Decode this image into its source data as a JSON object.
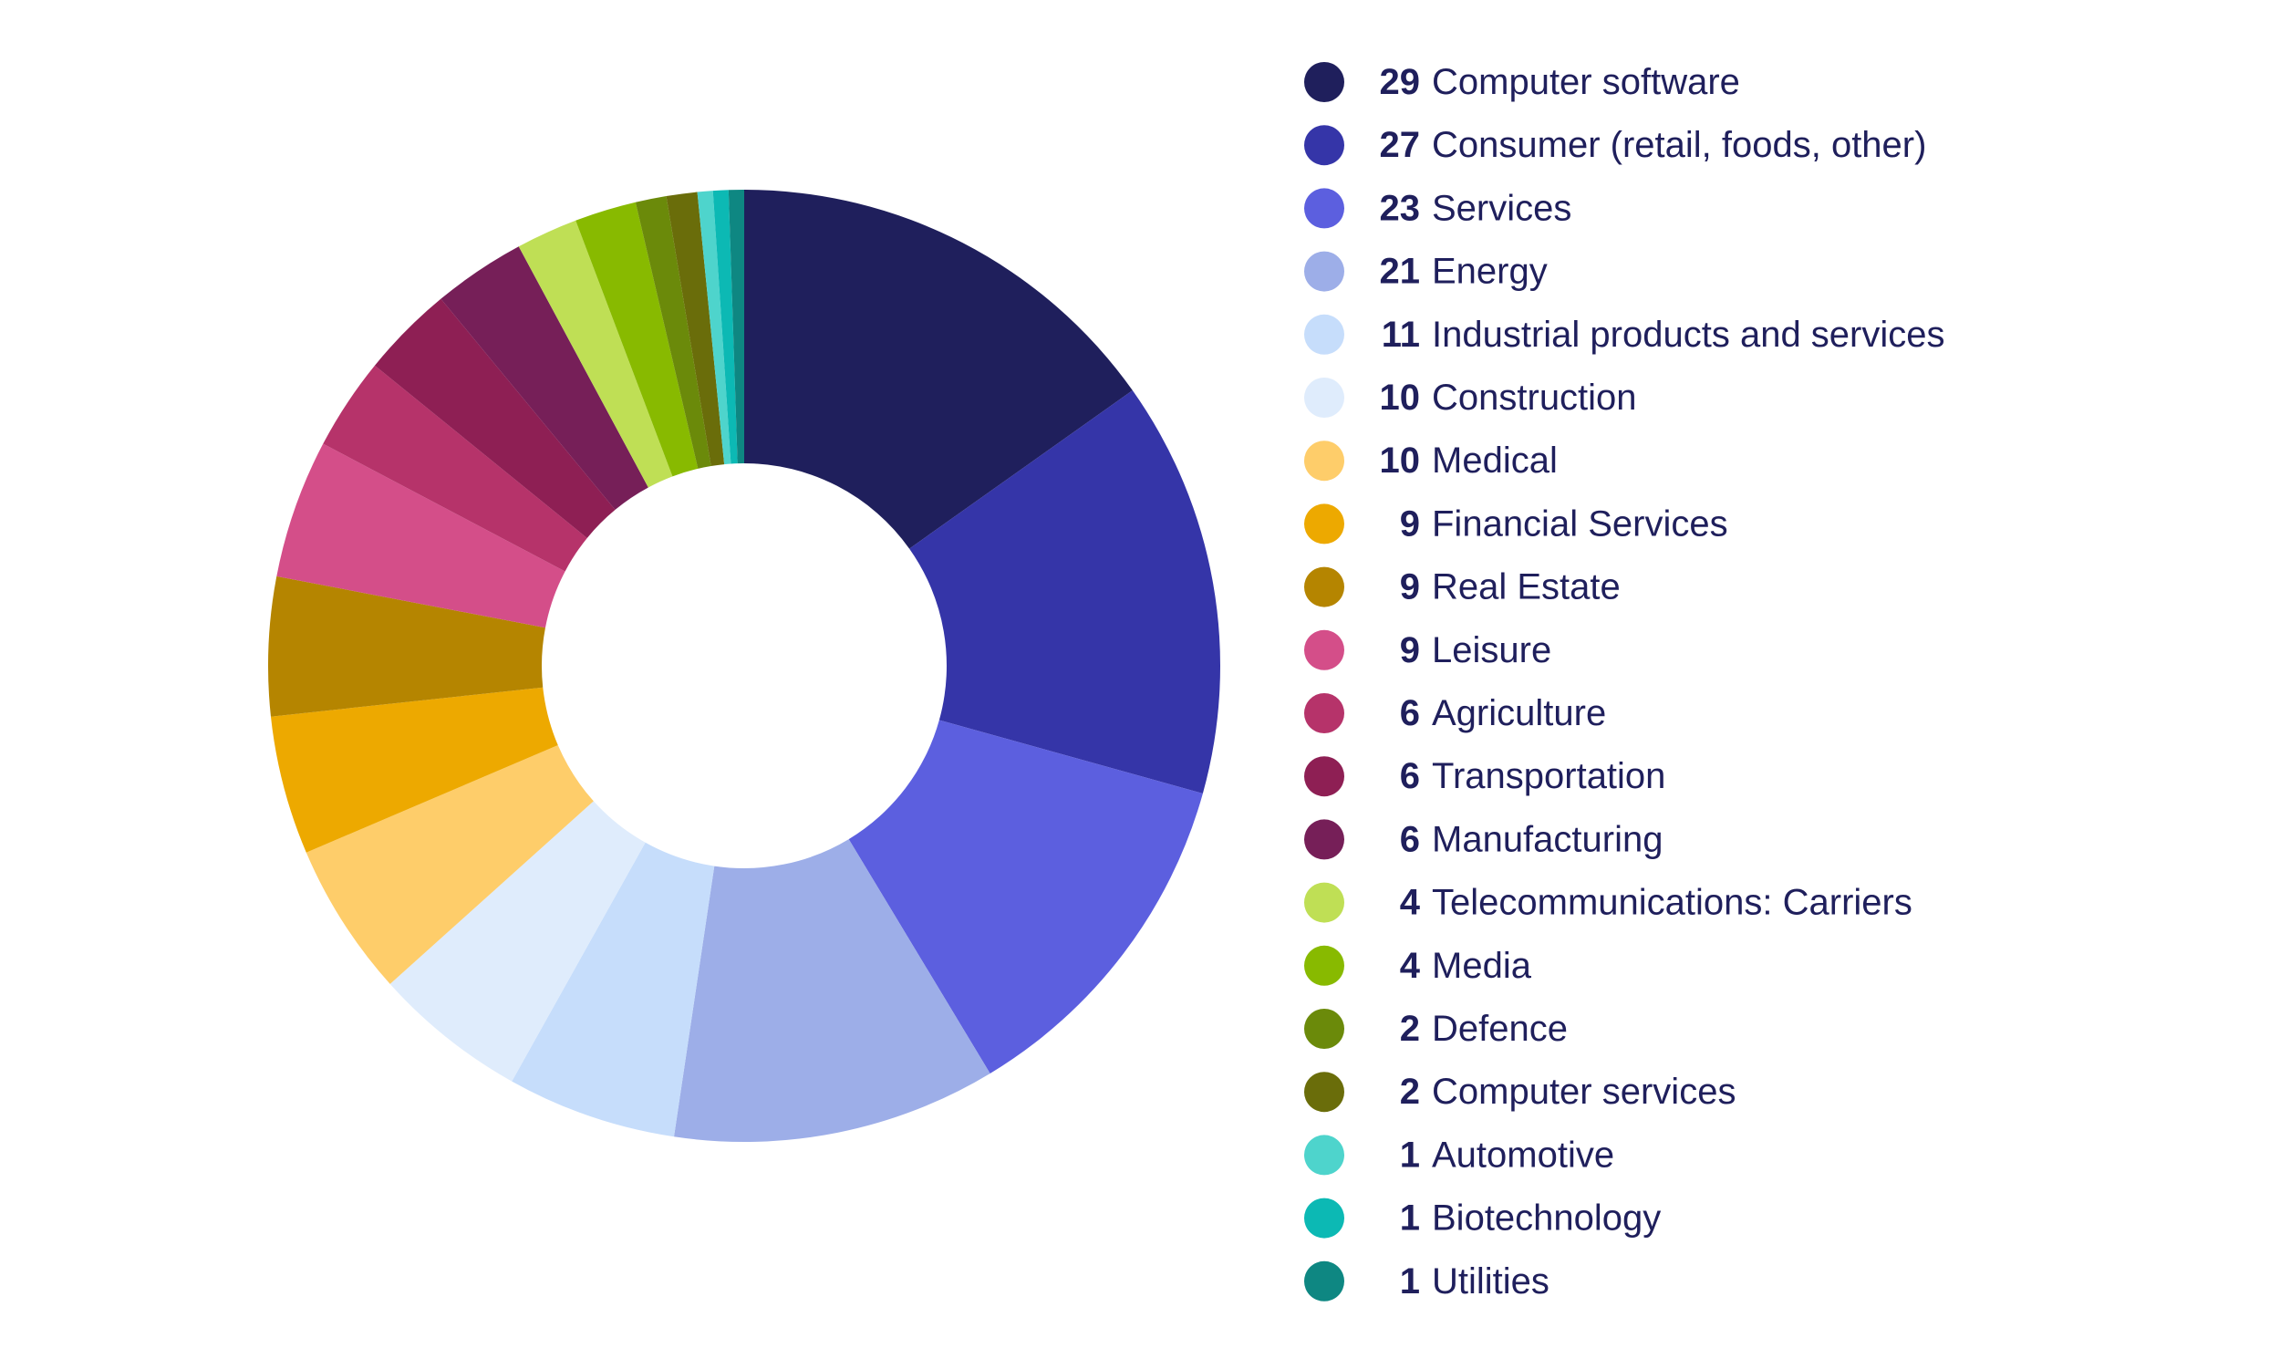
{
  "chart_data": {
    "type": "pie",
    "donut": true,
    "legend_placement": "right",
    "series": [
      {
        "label": "Computer software",
        "value": 29,
        "color": "#1f1f5c"
      },
      {
        "label": "Consumer (retail, foods, other)",
        "value": 27,
        "color": "#3535a8"
      },
      {
        "label": "Services",
        "value": 23,
        "color": "#5c5fdf"
      },
      {
        "label": "Energy",
        "value": 21,
        "color": "#9daee8"
      },
      {
        "label": "Industrial products and services",
        "value": 11,
        "color": "#c6ddfb"
      },
      {
        "label": "Construction",
        "value": 10,
        "color": "#dfecfc"
      },
      {
        "label": "Medical",
        "value": 10,
        "color": "#fecd6a"
      },
      {
        "label": "Financial Services",
        "value": 9,
        "color": "#eda900"
      },
      {
        "label": "Real Estate",
        "value": 9,
        "color": "#b58500"
      },
      {
        "label": "Leisure",
        "value": 9,
        "color": "#d44e89"
      },
      {
        "label": "Agriculture",
        "value": 6,
        "color": "#b6336a"
      },
      {
        "label": "Transportation",
        "value": 6,
        "color": "#8e1f54"
      },
      {
        "label": "Manufacturing",
        "value": 6,
        "color": "#761f58"
      },
      {
        "label": "Telecommunications: Carriers",
        "value": 4,
        "color": "#bfdf55"
      },
      {
        "label": "Media",
        "value": 4,
        "color": "#88ba00"
      },
      {
        "label": "Defence",
        "value": 2,
        "color": "#6b8a0a"
      },
      {
        "label": "Computer services",
        "value": 2,
        "color": "#6a6d0a"
      },
      {
        "label": "Automotive",
        "value": 1,
        "color": "#4ed4cc"
      },
      {
        "label": "Biotechnology",
        "value": 1,
        "color": "#0cb9b4"
      },
      {
        "label": "Utilities",
        "value": 1,
        "color": "#0e8782"
      }
    ]
  }
}
